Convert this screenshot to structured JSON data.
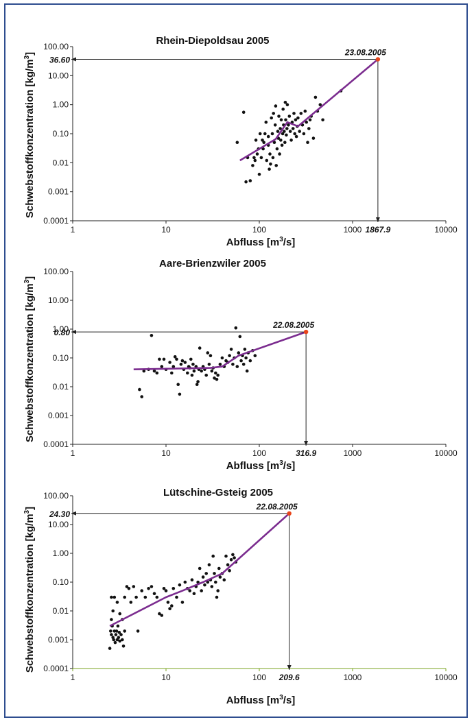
{
  "chart_data": [
    {
      "type": "scatter",
      "title": "Rhein-Diepoldsau 2005",
      "xlabel": "Abfluss [m",
      "xlabel_sup": "3",
      "xlabel_end": "/s]",
      "ylabel": "Schwebstoffkonzentration [kg/m",
      "ylabel_sup": "3",
      "ylabel_end": "]",
      "xscale": "log",
      "yscale": "log",
      "xlim": [
        1,
        10000
      ],
      "ylim": [
        0.0001,
        100
      ],
      "x_ticks": [
        "1",
        "10",
        "100",
        "1000",
        "10000"
      ],
      "y_ticks": [
        "0.0001",
        "0.001",
        "0.01",
        "0.10",
        "1.00",
        "10.00",
        "100.00"
      ],
      "event": {
        "date": "23.08.2005",
        "x": 1867.9,
        "y": 36.6,
        "x_label": "1867.9",
        "y_label": "36.60"
      },
      "fit_line": [
        [
          62,
          0.012
        ],
        [
          150,
          0.065
        ],
        [
          200,
          0.25
        ],
        [
          260,
          0.18
        ],
        [
          1867.9,
          36.6
        ]
      ],
      "points": [
        [
          58,
          0.05
        ],
        [
          68,
          0.55
        ],
        [
          72,
          0.0022
        ],
        [
          80,
          0.0024
        ],
        [
          75,
          0.015
        ],
        [
          85,
          0.008
        ],
        [
          90,
          0.012
        ],
        [
          95,
          0.02
        ],
        [
          100,
          0.004
        ],
        [
          105,
          0.015
        ],
        [
          110,
          0.03
        ],
        [
          108,
          0.06
        ],
        [
          115,
          0.1
        ],
        [
          120,
          0.012
        ],
        [
          118,
          0.25
        ],
        [
          125,
          0.08
        ],
        [
          128,
          0.006
        ],
        [
          130,
          0.02
        ],
        [
          135,
          0.35
        ],
        [
          138,
          0.1
        ],
        [
          140,
          0.015
        ],
        [
          142,
          0.5
        ],
        [
          145,
          0.05
        ],
        [
          148,
          0.2
        ],
        [
          150,
          0.9
        ],
        [
          152,
          0.008
        ],
        [
          155,
          0.03
        ],
        [
          158,
          0.12
        ],
        [
          160,
          0.07
        ],
        [
          162,
          0.4
        ],
        [
          165,
          0.02
        ],
        [
          168,
          0.15
        ],
        [
          170,
          0.06
        ],
        [
          172,
          0.3
        ],
        [
          175,
          0.04
        ],
        [
          178,
          0.1
        ],
        [
          180,
          0.7
        ],
        [
          182,
          0.2
        ],
        [
          185,
          0.12
        ],
        [
          188,
          0.05
        ],
        [
          190,
          1.2
        ],
        [
          192,
          0.3
        ],
        [
          195,
          0.09
        ],
        [
          198,
          0.15
        ],
        [
          200,
          1.0
        ],
        [
          205,
          0.2
        ],
        [
          210,
          0.4
        ],
        [
          215,
          0.12
        ],
        [
          220,
          0.06
        ],
        [
          225,
          0.25
        ],
        [
          230,
          0.15
        ],
        [
          235,
          0.5
        ],
        [
          240,
          0.1
        ],
        [
          245,
          0.3
        ],
        [
          250,
          0.08
        ],
        [
          255,
          0.18
        ],
        [
          260,
          0.35
        ],
        [
          270,
          0.12
        ],
        [
          280,
          0.5
        ],
        [
          290,
          0.2
        ],
        [
          300,
          0.1
        ],
        [
          310,
          0.6
        ],
        [
          320,
          0.25
        ],
        [
          330,
          0.05
        ],
        [
          340,
          0.15
        ],
        [
          350,
          0.3
        ],
        [
          360,
          0.4
        ],
        [
          380,
          0.07
        ],
        [
          400,
          1.8
        ],
        [
          420,
          0.6
        ],
        [
          450,
          1.0
        ],
        [
          480,
          0.3
        ],
        [
          750,
          3.0
        ],
        [
          125,
          0.04
        ],
        [
          132,
          0.009
        ],
        [
          102,
          0.1
        ],
        [
          112,
          0.05
        ],
        [
          98,
          0.03
        ],
        [
          88,
          0.015
        ],
        [
          92,
          0.06
        ]
      ]
    },
    {
      "type": "scatter",
      "title": "Aare-Brienzwiler 2005",
      "xlabel": "Abfluss [m",
      "xlabel_sup": "3",
      "xlabel_end": "/s]",
      "ylabel": "Schwebstoffkonzentration [kg/m",
      "ylabel_sup": "3",
      "ylabel_end": "]",
      "xscale": "log",
      "yscale": "log",
      "xlim": [
        1,
        10000
      ],
      "ylim": [
        0.0001,
        100
      ],
      "x_ticks": [
        "1",
        "10",
        "100",
        "1000",
        "10000"
      ],
      "y_ticks": [
        "0.0001",
        "0.001",
        "0.01",
        "0.10",
        "1.00",
        "10.00",
        "100.00"
      ],
      "event": {
        "date": "22.08.2005",
        "x": 316.9,
        "y": 0.8,
        "x_label": "316.9",
        "y_label": "0.80"
      },
      "fit_line": [
        [
          4.5,
          0.04
        ],
        [
          30,
          0.045
        ],
        [
          40,
          0.05
        ],
        [
          60,
          0.12
        ],
        [
          316.9,
          0.8
        ]
      ],
      "points": [
        [
          5.2,
          0.008
        ],
        [
          5.5,
          0.0045
        ],
        [
          5.8,
          0.035
        ],
        [
          6.5,
          0.04
        ],
        [
          7,
          0.6
        ],
        [
          7.5,
          0.035
        ],
        [
          8,
          0.03
        ],
        [
          8.5,
          0.09
        ],
        [
          9,
          0.05
        ],
        [
          9.5,
          0.09
        ],
        [
          10,
          0.04
        ],
        [
          11,
          0.07
        ],
        [
          11.5,
          0.03
        ],
        [
          12,
          0.05
        ],
        [
          12.5,
          0.11
        ],
        [
          13,
          0.09
        ],
        [
          13.5,
          0.012
        ],
        [
          14,
          0.0055
        ],
        [
          14.5,
          0.06
        ],
        [
          15,
          0.08
        ],
        [
          15.5,
          0.04
        ],
        [
          16,
          0.07
        ],
        [
          17,
          0.03
        ],
        [
          17.5,
          0.05
        ],
        [
          18,
          0.045
        ],
        [
          18.5,
          0.09
        ],
        [
          19,
          0.025
        ],
        [
          19.5,
          0.06
        ],
        [
          20,
          0.035
        ],
        [
          21,
          0.05
        ],
        [
          21.5,
          0.012
        ],
        [
          22,
          0.015
        ],
        [
          22.5,
          0.04
        ],
        [
          23,
          0.22
        ],
        [
          24,
          0.035
        ],
        [
          25,
          0.05
        ],
        [
          26,
          0.04
        ],
        [
          27,
          0.025
        ],
        [
          28,
          0.15
        ],
        [
          29,
          0.06
        ],
        [
          30,
          0.12
        ],
        [
          31,
          0.035
        ],
        [
          32,
          0.045
        ],
        [
          33,
          0.02
        ],
        [
          34,
          0.03
        ],
        [
          35,
          0.018
        ],
        [
          36,
          0.025
        ],
        [
          38,
          0.06
        ],
        [
          40,
          0.1
        ],
        [
          42,
          0.05
        ],
        [
          44,
          0.08
        ],
        [
          46,
          0.07
        ],
        [
          48,
          0.12
        ],
        [
          50,
          0.2
        ],
        [
          52,
          0.06
        ],
        [
          54,
          0.1
        ],
        [
          56,
          1.1
        ],
        [
          58,
          0.05
        ],
        [
          60,
          0.15
        ],
        [
          62,
          0.55
        ],
        [
          64,
          0.08
        ],
        [
          66,
          0.12
        ],
        [
          68,
          0.06
        ],
        [
          70,
          0.2
        ],
        [
          72,
          0.1
        ],
        [
          74,
          0.035
        ],
        [
          76,
          0.15
        ],
        [
          80,
          0.08
        ],
        [
          85,
          0.18
        ],
        [
          90,
          0.12
        ]
      ]
    },
    {
      "type": "scatter",
      "title": "Lütschine-Gsteig 2005",
      "xlabel": "Abfluss [m",
      "xlabel_sup": "3",
      "xlabel_end": "/s]",
      "ylabel": "Schwebstoffkonzentration [kg/m",
      "ylabel_sup": "3",
      "ylabel_end": "]",
      "xscale": "log",
      "yscale": "log",
      "xlim": [
        1,
        10000
      ],
      "ylim": [
        0.0001,
        100
      ],
      "x_ticks": [
        "1",
        "10",
        "100",
        "1000",
        "10000"
      ],
      "y_ticks": [
        "0.0001",
        "0.001",
        "0.01",
        "0.10",
        "1.00",
        "10.00",
        "100.00"
      ],
      "event": {
        "date": "22.08.2005",
        "x": 209.6,
        "y": 24.3,
        "x_label": "209.6",
        "y_label": "24.30"
      },
      "fit_line": [
        [
          2.5,
          0.003
        ],
        [
          10,
          0.03
        ],
        [
          15,
          0.05
        ],
        [
          25,
          0.1
        ],
        [
          40,
          0.2
        ],
        [
          55,
          0.5
        ],
        [
          209.6,
          24.3
        ]
      ],
      "points": [
        [
          2.5,
          0.0005
        ],
        [
          2.55,
          0.002
        ],
        [
          2.6,
          0.0015
        ],
        [
          2.65,
          0.003
        ],
        [
          2.7,
          0.0012
        ],
        [
          2.75,
          0.001
        ],
        [
          2.8,
          0.002
        ],
        [
          2.85,
          0.0008
        ],
        [
          2.9,
          0.0015
        ],
        [
          2.95,
          0.002
        ],
        [
          3.0,
          0.001
        ],
        [
          3.05,
          0.003
        ],
        [
          3.1,
          0.0012
        ],
        [
          3.15,
          0.0018
        ],
        [
          3.2,
          0.0009
        ],
        [
          3.3,
          0.0015
        ],
        [
          3.4,
          0.001
        ],
        [
          3.5,
          0.0006
        ],
        [
          3.6,
          0.002
        ],
        [
          2.6,
          0.005
        ],
        [
          2.7,
          0.01
        ],
        [
          2.6,
          0.03
        ],
        [
          2.8,
          0.03
        ],
        [
          3.0,
          0.02
        ],
        [
          3.2,
          0.008
        ],
        [
          3.4,
          0.005
        ],
        [
          3.6,
          0.03
        ],
        [
          3.8,
          0.07
        ],
        [
          4.0,
          0.06
        ],
        [
          4.2,
          0.02
        ],
        [
          4.5,
          0.07
        ],
        [
          4.8,
          0.03
        ],
        [
          5,
          0.002
        ],
        [
          5.5,
          0.05
        ],
        [
          6,
          0.03
        ],
        [
          6.5,
          0.06
        ],
        [
          7,
          0.07
        ],
        [
          7.5,
          0.04
        ],
        [
          8,
          0.03
        ],
        [
          8.5,
          0.008
        ],
        [
          9,
          0.007
        ],
        [
          9.5,
          0.06
        ],
        [
          10,
          0.05
        ],
        [
          10.5,
          0.02
        ],
        [
          11,
          0.012
        ],
        [
          11.5,
          0.015
        ],
        [
          12,
          0.06
        ],
        [
          13,
          0.03
        ],
        [
          14,
          0.08
        ],
        [
          15,
          0.02
        ],
        [
          16,
          0.1
        ],
        [
          17,
          0.06
        ],
        [
          18,
          0.05
        ],
        [
          19,
          0.12
        ],
        [
          20,
          0.04
        ],
        [
          21,
          0.07
        ],
        [
          22,
          0.1
        ],
        [
          23,
          0.3
        ],
        [
          24,
          0.05
        ],
        [
          25,
          0.15
        ],
        [
          26,
          0.08
        ],
        [
          27,
          0.2
        ],
        [
          28,
          0.1
        ],
        [
          29,
          0.4
        ],
        [
          30,
          0.12
        ],
        [
          31,
          0.07
        ],
        [
          32,
          0.8
        ],
        [
          33,
          0.2
        ],
        [
          34,
          0.1
        ],
        [
          35,
          0.03
        ],
        [
          36,
          0.05
        ],
        [
          37,
          0.3
        ],
        [
          38,
          0.15
        ],
        [
          40,
          0.2
        ],
        [
          42,
          0.12
        ],
        [
          44,
          0.8
        ],
        [
          46,
          0.4
        ],
        [
          48,
          0.25
        ],
        [
          50,
          0.6
        ],
        [
          52,
          0.9
        ],
        [
          54,
          0.7
        ],
        [
          56,
          0.5
        ]
      ]
    }
  ],
  "colors": {
    "line": "#7b2c8f",
    "point": "#111111",
    "event_point": "#e8451b",
    "x_axis_1": "#222222",
    "x_axis_3": "#7aa31f",
    "frame": "#2e4d8f"
  }
}
